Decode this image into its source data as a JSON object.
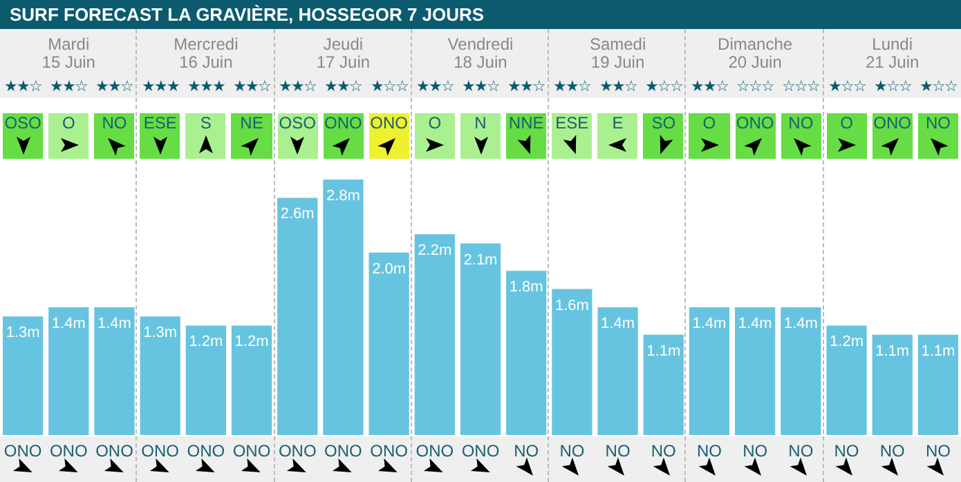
{
  "chart_data": {
    "type": "bar",
    "title": "SURF FORECAST LA GRAVIÈRE, HOSSEGOR 7 JOURS",
    "categories": [
      "ONO",
      "ONO",
      "ONO",
      "ONO",
      "ONO",
      "ONO",
      "ONO",
      "ONO",
      "ONO",
      "ONO",
      "ONO",
      "NO",
      "NO",
      "NO",
      "NO",
      "NO",
      "NO",
      "NO",
      "NO",
      "NO",
      "NO"
    ],
    "color": "#66c4e0",
    "values": [
      1.3,
      1.4,
      1.4,
      1.3,
      1.2,
      1.2,
      2.6,
      2.8,
      2.0,
      2.2,
      2.1,
      1.8,
      1.6,
      1.4,
      1.1,
      1.4,
      1.4,
      1.4,
      1.2,
      1.1,
      1.1
    ],
    "value_labels": [
      "1.3m",
      "1.4m",
      "1.4m",
      "1.3m",
      "1.2m",
      "1.2m",
      "2.6m",
      "2.8m",
      "2.0m",
      "2.2m",
      "2.1m",
      "1.8m",
      "1.6m",
      "1.4m",
      "1.1m",
      "1.4m",
      "1.4m",
      "1.4m",
      "1.2m",
      "1.1m",
      "1.1m"
    ],
    "annotations": [
      "Mardi",
      "15 Juin",
      "Mercredi",
      "16 Juin",
      "Jeudi",
      "17 Juin",
      "Vendredi",
      "18 Juin",
      "Samedi",
      "19 Juin",
      "Dimanche",
      "20 Juin",
      "Lundi",
      "21 Juin",
      "★★☆",
      "★★☆",
      "★★☆",
      "★★★",
      "★★★",
      "★★☆",
      "★★☆",
      "★★☆",
      "★☆☆",
      "★★☆",
      "★★☆",
      "★★☆",
      "★★☆",
      "★★☆",
      "★☆☆",
      "★★☆",
      "☆☆☆",
      "☆☆☆",
      "★☆☆",
      "★☆☆",
      "★☆☆",
      "OSO",
      "O",
      "NO",
      "ESE",
      "S",
      "NE",
      "OSO",
      "ONO",
      "ONO",
      "O",
      "N",
      "NNE",
      "ESE",
      "E",
      "SO",
      "O",
      "ONO",
      "NO",
      "O",
      "ONO",
      "NO"
    ]
  }
}
